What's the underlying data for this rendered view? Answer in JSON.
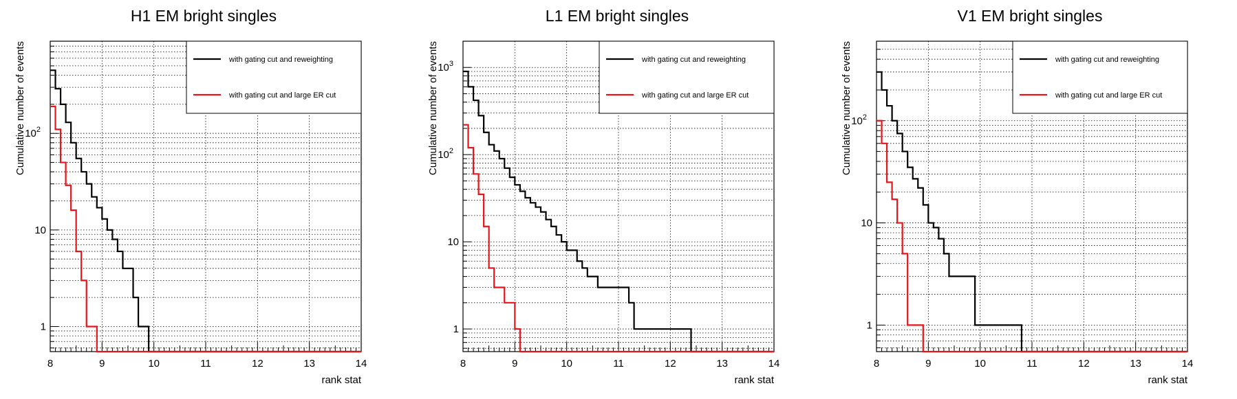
{
  "colors": {
    "black": "#000000",
    "red": "#e8141a",
    "grid": "#000000",
    "background": "#ffffff"
  },
  "chart_data": [
    {
      "type": "line",
      "step": true,
      "title": "H1 EM bright singles",
      "xlabel": "rank stat",
      "ylabel": "Cumulative number of events",
      "xlim": [
        8,
        14
      ],
      "ylim": [
        0.55,
        900
      ],
      "yscale": "log",
      "xticks": [
        "8",
        "9",
        "10",
        "11",
        "12",
        "13",
        "14"
      ],
      "yticks": [
        {
          "v": 1,
          "label": "1"
        },
        {
          "v": 10,
          "label": "10"
        },
        {
          "v": 100,
          "label": "10",
          "sup": "2"
        }
      ],
      "grid": true,
      "legend_position": "top-right",
      "series": [
        {
          "name": "with gating cut and reweighting",
          "color": "#000000",
          "x": [
            8.0,
            8.1,
            8.2,
            8.3,
            8.4,
            8.5,
            8.6,
            8.7,
            8.8,
            8.9,
            9.0,
            9.1,
            9.2,
            9.3,
            9.4,
            9.5,
            9.6,
            9.7,
            9.8,
            9.9
          ],
          "y": [
            450,
            290,
            200,
            130,
            80,
            55,
            40,
            30,
            22,
            17,
            13,
            10,
            8,
            6,
            4,
            4,
            2,
            1,
            1,
            0
          ]
        },
        {
          "name": "with gating cut and large ER cut",
          "color": "#e8141a",
          "x": [
            8.0,
            8.1,
            8.2,
            8.3,
            8.4,
            8.5,
            8.6,
            8.7,
            8.8,
            8.9
          ],
          "y": [
            190,
            110,
            50,
            29,
            16,
            6,
            3,
            1,
            1,
            0
          ]
        }
      ]
    },
    {
      "type": "line",
      "step": true,
      "title": "L1 EM bright singles",
      "xlabel": "rank stat",
      "ylabel": "Cumulative number of events",
      "xlim": [
        8,
        14
      ],
      "ylim": [
        0.55,
        2000
      ],
      "yscale": "log",
      "xticks": [
        "8",
        "9",
        "10",
        "11",
        "12",
        "13",
        "14"
      ],
      "yticks": [
        {
          "v": 1,
          "label": "1"
        },
        {
          "v": 10,
          "label": "10"
        },
        {
          "v": 100,
          "label": "10",
          "sup": "2"
        },
        {
          "v": 1000,
          "label": "10",
          "sup": "3"
        }
      ],
      "grid": true,
      "legend_position": "top-right",
      "series": [
        {
          "name": "with gating cut and reweighting",
          "color": "#000000",
          "x": [
            8.0,
            8.1,
            8.2,
            8.3,
            8.4,
            8.5,
            8.6,
            8.7,
            8.8,
            8.9,
            9.0,
            9.1,
            9.2,
            9.3,
            9.4,
            9.5,
            9.6,
            9.7,
            9.8,
            9.9,
            10.0,
            10.1,
            10.2,
            10.3,
            10.4,
            10.5,
            10.6,
            11.0,
            11.2,
            11.3,
            12.4
          ],
          "y": [
            900,
            600,
            420,
            280,
            180,
            130,
            110,
            90,
            70,
            55,
            45,
            38,
            32,
            28,
            25,
            22,
            18,
            15,
            12,
            10,
            8,
            8,
            6,
            5,
            4,
            4,
            3,
            3,
            2,
            1,
            0
          ]
        },
        {
          "name": "with gating cut and large ER cut",
          "color": "#e8141a",
          "x": [
            8.0,
            8.1,
            8.2,
            8.3,
            8.4,
            8.5,
            8.6,
            8.8,
            9.0,
            9.1
          ],
          "y": [
            220,
            120,
            60,
            35,
            15,
            5,
            3,
            2,
            1,
            0
          ]
        }
      ]
    },
    {
      "type": "line",
      "step": true,
      "title": "V1 EM bright singles",
      "xlabel": "rank stat",
      "ylabel": "Cumulative number of events",
      "xlim": [
        8,
        14
      ],
      "ylim": [
        0.55,
        600
      ],
      "yscale": "log",
      "xticks": [
        "8",
        "9",
        "10",
        "11",
        "12",
        "13",
        "14"
      ],
      "yticks": [
        {
          "v": 1,
          "label": "1"
        },
        {
          "v": 10,
          "label": "10"
        },
        {
          "v": 100,
          "label": "10",
          "sup": "2"
        }
      ],
      "grid": true,
      "legend_position": "top-right",
      "series": [
        {
          "name": "with gating cut and reweighting",
          "color": "#000000",
          "x": [
            8.0,
            8.1,
            8.2,
            8.3,
            8.4,
            8.5,
            8.6,
            8.7,
            8.8,
            8.9,
            9.0,
            9.1,
            9.2,
            9.3,
            9.4,
            9.9,
            10.8
          ],
          "y": [
            300,
            200,
            140,
            100,
            75,
            50,
            35,
            27,
            22,
            15,
            10,
            9,
            7,
            5,
            3,
            1,
            0
          ]
        },
        {
          "name": "with gating cut and large ER cut",
          "color": "#e8141a",
          "x": [
            8.0,
            8.1,
            8.2,
            8.3,
            8.4,
            8.5,
            8.6,
            8.9
          ],
          "y": [
            100,
            60,
            25,
            17,
            10,
            5,
            1,
            0
          ]
        }
      ]
    }
  ]
}
